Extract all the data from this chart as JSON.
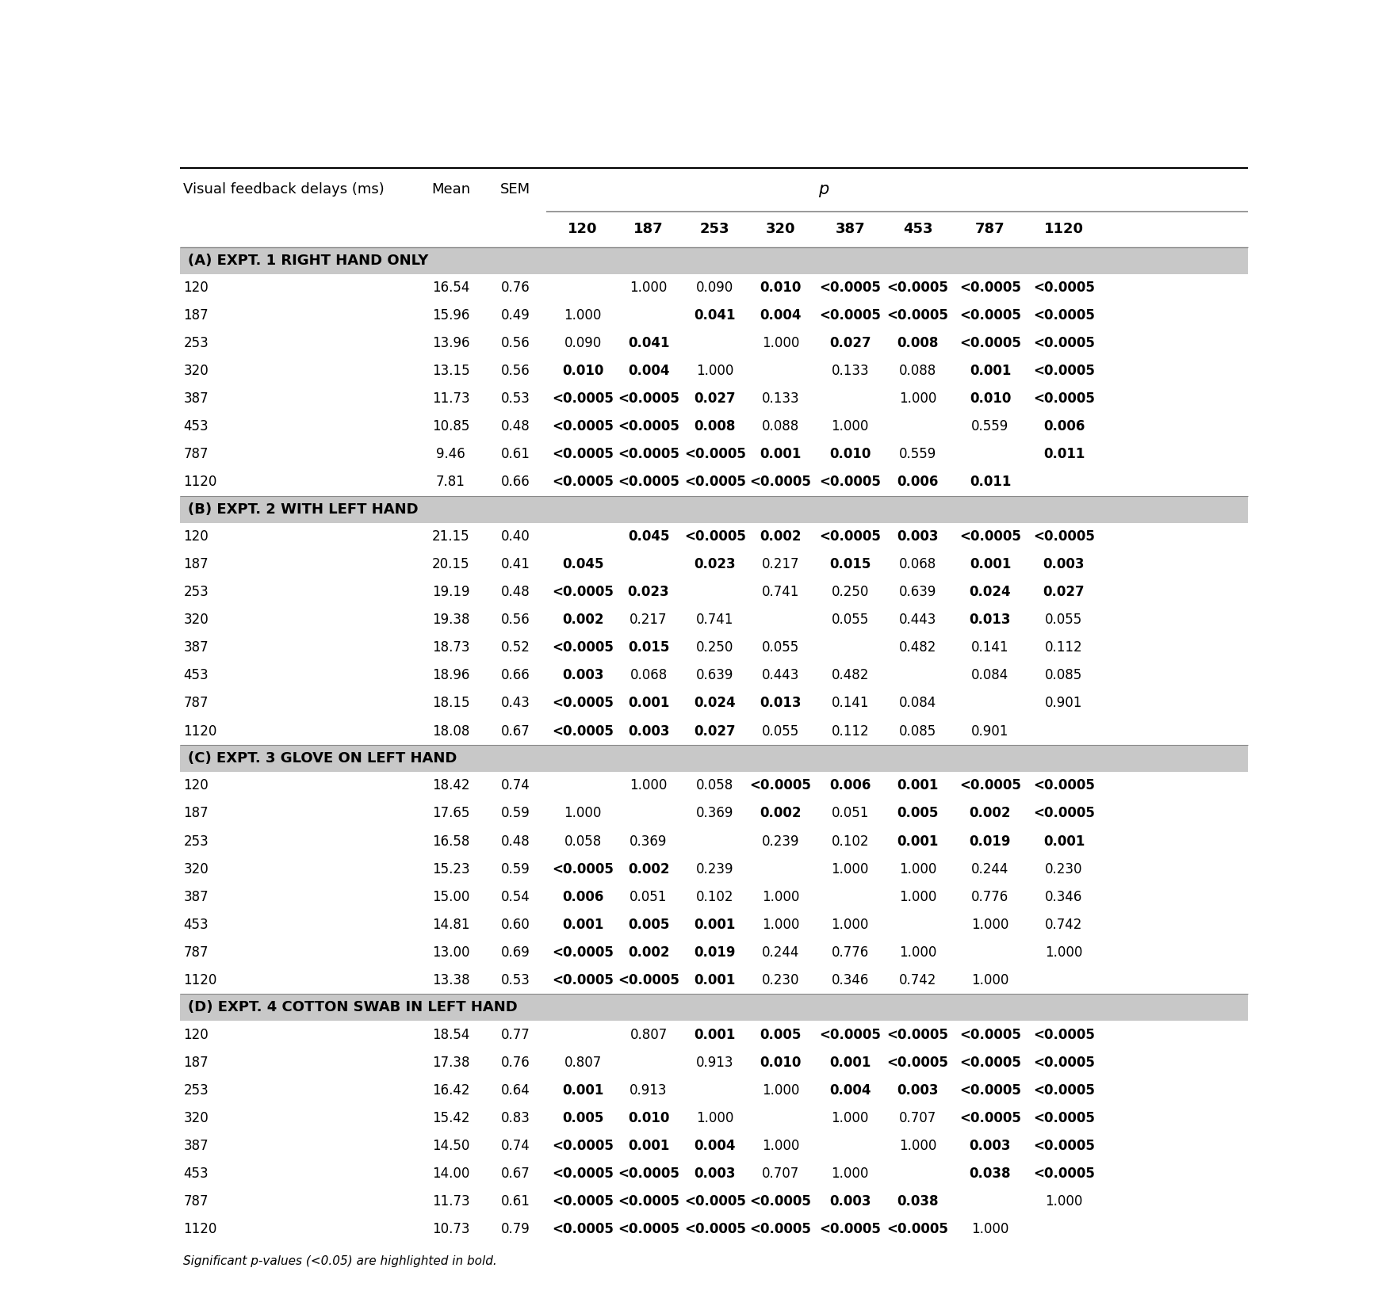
{
  "header_col": "Visual feedback delays (ms)",
  "header_mean": "Mean",
  "header_sem": "SEM",
  "header_p": "p",
  "p_cols": [
    "120",
    "187",
    "253",
    "320",
    "387",
    "453",
    "787",
    "1120"
  ],
  "sections": [
    {
      "label": "(A) EXPT. 1 RIGHT HAND ONLY",
      "rows": [
        {
          "delay": "120",
          "mean": "16.54",
          "sem": "0.76",
          "p": [
            "",
            "1.000",
            "0.090",
            "0.010",
            "<0.0005",
            "<0.0005",
            "<0.0005",
            "<0.0005"
          ]
        },
        {
          "delay": "187",
          "mean": "15.96",
          "sem": "0.49",
          "p": [
            "1.000",
            "",
            "0.041",
            "0.004",
            "<0.0005",
            "<0.0005",
            "<0.0005",
            "<0.0005"
          ]
        },
        {
          "delay": "253",
          "mean": "13.96",
          "sem": "0.56",
          "p": [
            "0.090",
            "0.041",
            "",
            "1.000",
            "0.027",
            "0.008",
            "<0.0005",
            "<0.0005"
          ]
        },
        {
          "delay": "320",
          "mean": "13.15",
          "sem": "0.56",
          "p": [
            "0.010",
            "0.004",
            "1.000",
            "",
            "0.133",
            "0.088",
            "0.001",
            "<0.0005"
          ]
        },
        {
          "delay": "387",
          "mean": "11.73",
          "sem": "0.53",
          "p": [
            "<0.0005",
            "<0.0005",
            "0.027",
            "0.133",
            "",
            "1.000",
            "0.010",
            "<0.0005"
          ]
        },
        {
          "delay": "453",
          "mean": "10.85",
          "sem": "0.48",
          "p": [
            "<0.0005",
            "<0.0005",
            "0.008",
            "0.088",
            "1.000",
            "",
            "0.559",
            "0.006"
          ]
        },
        {
          "delay": "787",
          "mean": "9.46",
          "sem": "0.61",
          "p": [
            "<0.0005",
            "<0.0005",
            "<0.0005",
            "0.001",
            "0.010",
            "0.559",
            "",
            "0.011"
          ]
        },
        {
          "delay": "1120",
          "mean": "7.81",
          "sem": "0.66",
          "p": [
            "<0.0005",
            "<0.0005",
            "<0.0005",
            "<0.0005",
            "<0.0005",
            "0.006",
            "0.011",
            ""
          ]
        }
      ]
    },
    {
      "label": "(B) EXPT. 2 WITH LEFT HAND",
      "rows": [
        {
          "delay": "120",
          "mean": "21.15",
          "sem": "0.40",
          "p": [
            "",
            "0.045",
            "<0.0005",
            "0.002",
            "<0.0005",
            "0.003",
            "<0.0005",
            "<0.0005"
          ]
        },
        {
          "delay": "187",
          "mean": "20.15",
          "sem": "0.41",
          "p": [
            "0.045",
            "",
            "0.023",
            "0.217",
            "0.015",
            "0.068",
            "0.001",
            "0.003"
          ]
        },
        {
          "delay": "253",
          "mean": "19.19",
          "sem": "0.48",
          "p": [
            "<0.0005",
            "0.023",
            "",
            "0.741",
            "0.250",
            "0.639",
            "0.024",
            "0.027"
          ]
        },
        {
          "delay": "320",
          "mean": "19.38",
          "sem": "0.56",
          "p": [
            "0.002",
            "0.217",
            "0.741",
            "",
            "0.055",
            "0.443",
            "0.013",
            "0.055"
          ]
        },
        {
          "delay": "387",
          "mean": "18.73",
          "sem": "0.52",
          "p": [
            "<0.0005",
            "0.015",
            "0.250",
            "0.055",
            "",
            "0.482",
            "0.141",
            "0.112"
          ]
        },
        {
          "delay": "453",
          "mean": "18.96",
          "sem": "0.66",
          "p": [
            "0.003",
            "0.068",
            "0.639",
            "0.443",
            "0.482",
            "",
            "0.084",
            "0.085"
          ]
        },
        {
          "delay": "787",
          "mean": "18.15",
          "sem": "0.43",
          "p": [
            "<0.0005",
            "0.001",
            "0.024",
            "0.013",
            "0.141",
            "0.084",
            "",
            "0.901"
          ]
        },
        {
          "delay": "1120",
          "mean": "18.08",
          "sem": "0.67",
          "p": [
            "<0.0005",
            "0.003",
            "0.027",
            "0.055",
            "0.112",
            "0.085",
            "0.901",
            ""
          ]
        }
      ]
    },
    {
      "label": "(C) EXPT. 3 GLOVE ON LEFT HAND",
      "rows": [
        {
          "delay": "120",
          "mean": "18.42",
          "sem": "0.74",
          "p": [
            "",
            "1.000",
            "0.058",
            "<0.0005",
            "0.006",
            "0.001",
            "<0.0005",
            "<0.0005"
          ]
        },
        {
          "delay": "187",
          "mean": "17.65",
          "sem": "0.59",
          "p": [
            "1.000",
            "",
            "0.369",
            "0.002",
            "0.051",
            "0.005",
            "0.002",
            "<0.0005"
          ]
        },
        {
          "delay": "253",
          "mean": "16.58",
          "sem": "0.48",
          "p": [
            "0.058",
            "0.369",
            "",
            "0.239",
            "0.102",
            "0.001",
            "0.019",
            "0.001"
          ]
        },
        {
          "delay": "320",
          "mean": "15.23",
          "sem": "0.59",
          "p": [
            "<0.0005",
            "0.002",
            "0.239",
            "",
            "1.000",
            "1.000",
            "0.244",
            "0.230"
          ]
        },
        {
          "delay": "387",
          "mean": "15.00",
          "sem": "0.54",
          "p": [
            "0.006",
            "0.051",
            "0.102",
            "1.000",
            "",
            "1.000",
            "0.776",
            "0.346"
          ]
        },
        {
          "delay": "453",
          "mean": "14.81",
          "sem": "0.60",
          "p": [
            "0.001",
            "0.005",
            "0.001",
            "1.000",
            "1.000",
            "",
            "1.000",
            "0.742"
          ]
        },
        {
          "delay": "787",
          "mean": "13.00",
          "sem": "0.69",
          "p": [
            "<0.0005",
            "0.002",
            "0.019",
            "0.244",
            "0.776",
            "1.000",
            "",
            "1.000"
          ]
        },
        {
          "delay": "1120",
          "mean": "13.38",
          "sem": "0.53",
          "p": [
            "<0.0005",
            "<0.0005",
            "0.001",
            "0.230",
            "0.346",
            "0.742",
            "1.000",
            ""
          ]
        }
      ]
    },
    {
      "label": "(D) EXPT. 4 COTTON SWAB IN LEFT HAND",
      "rows": [
        {
          "delay": "120",
          "mean": "18.54",
          "sem": "0.77",
          "p": [
            "",
            "0.807",
            "0.001",
            "0.005",
            "<0.0005",
            "<0.0005",
            "<0.0005",
            "<0.0005"
          ]
        },
        {
          "delay": "187",
          "mean": "17.38",
          "sem": "0.76",
          "p": [
            "0.807",
            "",
            "0.913",
            "0.010",
            "0.001",
            "<0.0005",
            "<0.0005",
            "<0.0005"
          ]
        },
        {
          "delay": "253",
          "mean": "16.42",
          "sem": "0.64",
          "p": [
            "0.001",
            "0.913",
            "",
            "1.000",
            "0.004",
            "0.003",
            "<0.0005",
            "<0.0005"
          ]
        },
        {
          "delay": "320",
          "mean": "15.42",
          "sem": "0.83",
          "p": [
            "0.005",
            "0.010",
            "1.000",
            "",
            "1.000",
            "0.707",
            "<0.0005",
            "<0.0005"
          ]
        },
        {
          "delay": "387",
          "mean": "14.50",
          "sem": "0.74",
          "p": [
            "<0.0005",
            "0.001",
            "0.004",
            "1.000",
            "",
            "1.000",
            "0.003",
            "<0.0005"
          ]
        },
        {
          "delay": "453",
          "mean": "14.00",
          "sem": "0.67",
          "p": [
            "<0.0005",
            "<0.0005",
            "0.003",
            "0.707",
            "1.000",
            "",
            "0.038",
            "<0.0005"
          ]
        },
        {
          "delay": "787",
          "mean": "11.73",
          "sem": "0.61",
          "p": [
            "<0.0005",
            "<0.0005",
            "<0.0005",
            "<0.0005",
            "0.003",
            "0.038",
            "",
            "1.000"
          ]
        },
        {
          "delay": "1120",
          "mean": "10.73",
          "sem": "0.79",
          "p": [
            "<0.0005",
            "<0.0005",
            "<0.0005",
            "<0.0005",
            "<0.0005",
            "<0.0005",
            "1.000",
            ""
          ]
        }
      ]
    }
  ],
  "footnote": "Significant p-values (<0.05) are highlighted in bold.",
  "bg_color": "#ffffff",
  "section_bg": "#c8c8c8",
  "line_color": "#888888",
  "bold_threshold": 0.05
}
